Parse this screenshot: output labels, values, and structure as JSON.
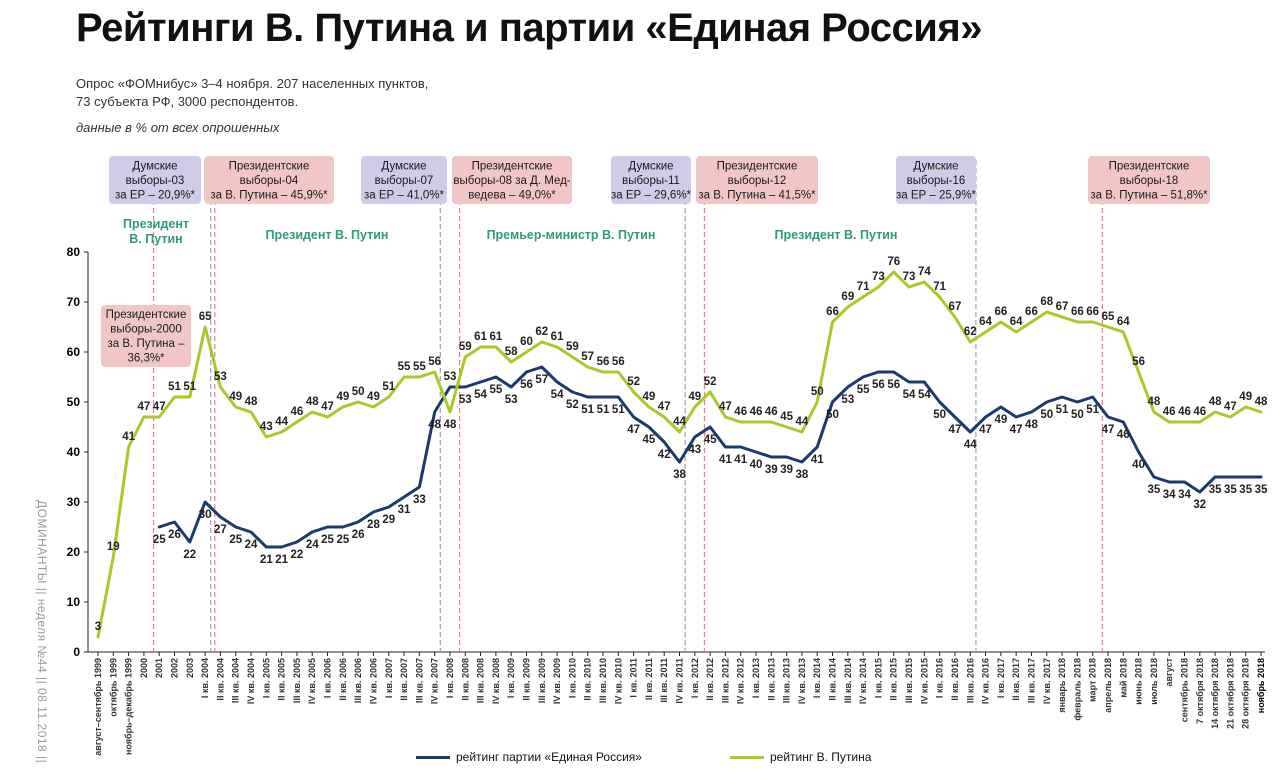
{
  "title": "Рейтинги В. Путина и партии «Единая Россия»",
  "subtitle_line1": "Опрос «ФОМнибус» 3–4 ноября. 207 населенных пунктов,",
  "subtitle_line2": "73 субъекта РФ, 3000 респондентов.",
  "note": "данные в % от всех опрошенных",
  "sidebar": "ДОМИНАНТЫ || неделя №44 || 08.11.2018 ||",
  "colors": {
    "er": "#1b3a6b",
    "putin": "#a9c82a",
    "label_green": "#2e9a80",
    "box_red": "#f2c6c6",
    "box_purple": "#cfcbe8",
    "vline_red": "#e57f7f",
    "vline_purple": "#9e99cc"
  },
  "chart_data": {
    "type": "line",
    "ylim": [
      0,
      80
    ],
    "yticks": [
      0,
      10,
      20,
      30,
      40,
      50,
      60,
      70,
      80
    ],
    "x": [
      "август–сентябрь 1999",
      "октябрь 1999",
      "ноябрь–декабрь 1999",
      "2000",
      "2001",
      "2002",
      "2003",
      "I кв. 2004",
      "II кв. 2004",
      "III кв. 2004",
      "IV кв. 2004",
      "I кв. 2005",
      "II кв. 2005",
      "III кв. 2005",
      "IV кв. 2005",
      "I кв. 2006",
      "II кв. 2006",
      "III кв. 2006",
      "IV кв. 2006",
      "I кв. 2007",
      "II кв. 2007",
      "III кв. 2007",
      "IV кв. 2007",
      "I кв. 2008",
      "II кв. 2008",
      "III кв. 2008",
      "IV кв. 2008",
      "I кв. 2009",
      "II кв. 2009",
      "III кв. 2009",
      "IV кв. 2009",
      "I кв. 2010",
      "II кв. 2010",
      "III кв. 2010",
      "IV кв. 2010",
      "I кв. 2011",
      "II кв. 2011",
      "III кв. 2011",
      "IV кв. 2011",
      "I кв. 2012",
      "II кв. 2012",
      "III кв. 2012",
      "IV кв. 2012",
      "I кв. 2013",
      "II кв. 2013",
      "III кв. 2013",
      "IV кв. 2013",
      "I кв. 2014",
      "II кв. 2014",
      "III кв. 2014",
      "IV кв. 2014",
      "I кв. 2015",
      "II кв. 2015",
      "III кв. 2015",
      "IV кв. 2015",
      "I кв. 2016",
      "II кв. 2016",
      "III кв. 2016",
      "IV кв. 2016",
      "I кв. 2017",
      "II кв. 2017",
      "III кв. 2017",
      "IV кв. 2017",
      "январь 2018",
      "февраль 2018",
      "март 2018",
      "апрель 2018",
      "май 2018",
      "июнь 2018",
      "июль 2018",
      "август",
      "сентябрь 2018",
      "7 октября 2018",
      "14 октября 2018",
      "21 октября 2018",
      "28 октября 2018",
      "ноябрь 2018"
    ],
    "series": [
      {
        "name": "рейтинг партии «Единая Россия»",
        "color": "#1b3a6b",
        "values": [
          null,
          null,
          null,
          null,
          25,
          26,
          22,
          30,
          27,
          25,
          24,
          21,
          21,
          22,
          24,
          25,
          25,
          26,
          28,
          29,
          31,
          33,
          48,
          53,
          53,
          54,
          55,
          53,
          56,
          57,
          54,
          52,
          51,
          51,
          51,
          47,
          45,
          42,
          38,
          43,
          45,
          41,
          41,
          40,
          39,
          39,
          38,
          41,
          50,
          53,
          55,
          56,
          56,
          54,
          54,
          50,
          47,
          44,
          47,
          49,
          47,
          48,
          50,
          51,
          50,
          51,
          47,
          46,
          40,
          35,
          34,
          34,
          32,
          35,
          35,
          35,
          35
        ]
      },
      {
        "name": "рейтинг В. Путина",
        "color": "#a9c82a",
        "values": [
          3,
          19,
          41,
          47,
          47,
          51,
          51,
          65,
          53,
          49,
          48,
          43,
          44,
          46,
          48,
          47,
          49,
          50,
          49,
          51,
          55,
          55,
          56,
          48,
          59,
          61,
          61,
          58,
          60,
          62,
          61,
          59,
          57,
          56,
          56,
          52,
          49,
          47,
          44,
          49,
          52,
          47,
          46,
          46,
          46,
          45,
          44,
          50,
          66,
          69,
          71,
          73,
          76,
          73,
          74,
          71,
          67,
          62,
          64,
          66,
          64,
          66,
          68,
          67,
          66,
          66,
          65,
          64,
          56,
          48,
          46,
          46,
          46,
          48,
          47,
          49,
          48
        ]
      }
    ],
    "vlines": [
      {
        "after": "2000",
        "kind": "red"
      },
      {
        "after": "I кв. 2004",
        "kind": "purple"
      },
      {
        "after": "I кв. 2004",
        "kind": "red"
      },
      {
        "after": "IV кв. 2007",
        "kind": "purple"
      },
      {
        "after": "I кв. 2008",
        "kind": "red"
      },
      {
        "after": "IV кв. 2011",
        "kind": "purple"
      },
      {
        "after": "I кв. 2012",
        "kind": "red"
      },
      {
        "after": "III кв. 2016",
        "kind": "purple"
      },
      {
        "after": "март 2018",
        "kind": "red"
      }
    ],
    "events": [
      {
        "lines": [
          "Думские",
          "выборы-03",
          "за ЕР – 20,9%*"
        ],
        "kind": "purple"
      },
      {
        "lines": [
          "Президентские",
          "выборы-04",
          "за В. Путина – 45,9%*"
        ],
        "kind": "red"
      },
      {
        "lines": [
          "Думские",
          "выборы-07",
          "за ЕР – 41,0%*"
        ],
        "kind": "purple"
      },
      {
        "lines": [
          "Президентские",
          "выборы-08 за Д. Мед-",
          "ведева – 49,0%*"
        ],
        "kind": "red"
      },
      {
        "lines": [
          "Думские",
          "выборы-11",
          "за ЕР – 29,6%*"
        ],
        "kind": "purple"
      },
      {
        "lines": [
          "Президентские",
          "выборы-12",
          "за В. Путина – 41,5%*"
        ],
        "kind": "red"
      },
      {
        "lines": [
          "Думские",
          "выборы-16",
          "за ЕР – 25,9%*"
        ],
        "kind": "purple"
      },
      {
        "lines": [
          "Президентские",
          "выборы-18",
          "за В. Путина – 51,8%*"
        ],
        "kind": "red"
      },
      {
        "lines": [
          "Президентские",
          "выборы-2000",
          "за В. Путина –",
          "36,3%*"
        ],
        "kind": "red"
      }
    ],
    "periods": [
      {
        "lines": [
          "Президент",
          "В. Путин"
        ]
      },
      {
        "lines": [
          "Президент В. Путин"
        ]
      },
      {
        "lines": [
          "Премьер-министр В. Путин"
        ]
      },
      {
        "lines": [
          "Президент В. Путин"
        ]
      }
    ]
  }
}
